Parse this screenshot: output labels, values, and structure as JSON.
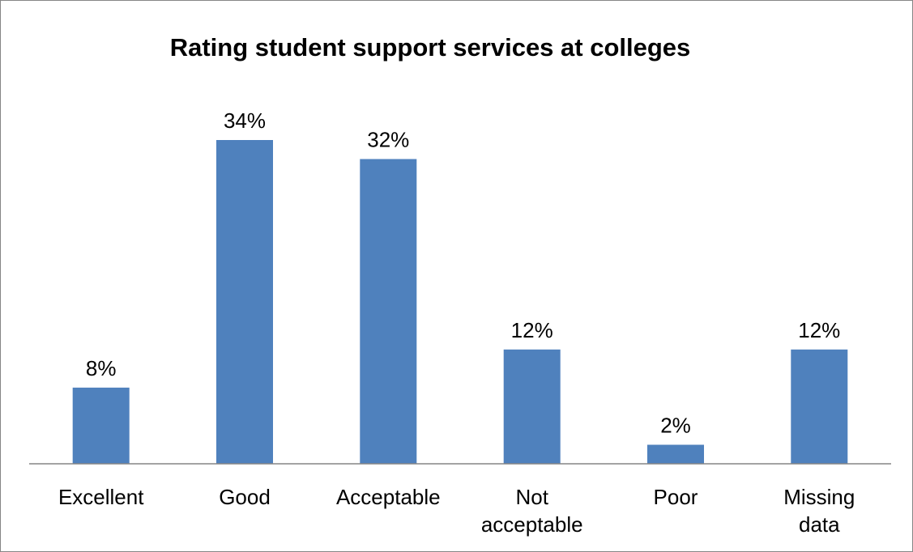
{
  "chart_data": {
    "type": "bar",
    "title": "Rating student support services at colleges",
    "categories": [
      [
        "Excellent"
      ],
      [
        "Good"
      ],
      [
        "Acceptable"
      ],
      [
        "Not",
        "acceptable"
      ],
      [
        "Poor"
      ],
      [
        "Missing",
        "data"
      ]
    ],
    "values": [
      8,
      34,
      32,
      12,
      2,
      12
    ],
    "data_labels": [
      "8%",
      "34%",
      "32%",
      "12%",
      "2%",
      "12%"
    ],
    "unit": "%",
    "ylim": [
      0,
      40
    ],
    "grid": false,
    "legend": "none",
    "bar_color": "#4f81bd",
    "axis_color": "#868686"
  }
}
